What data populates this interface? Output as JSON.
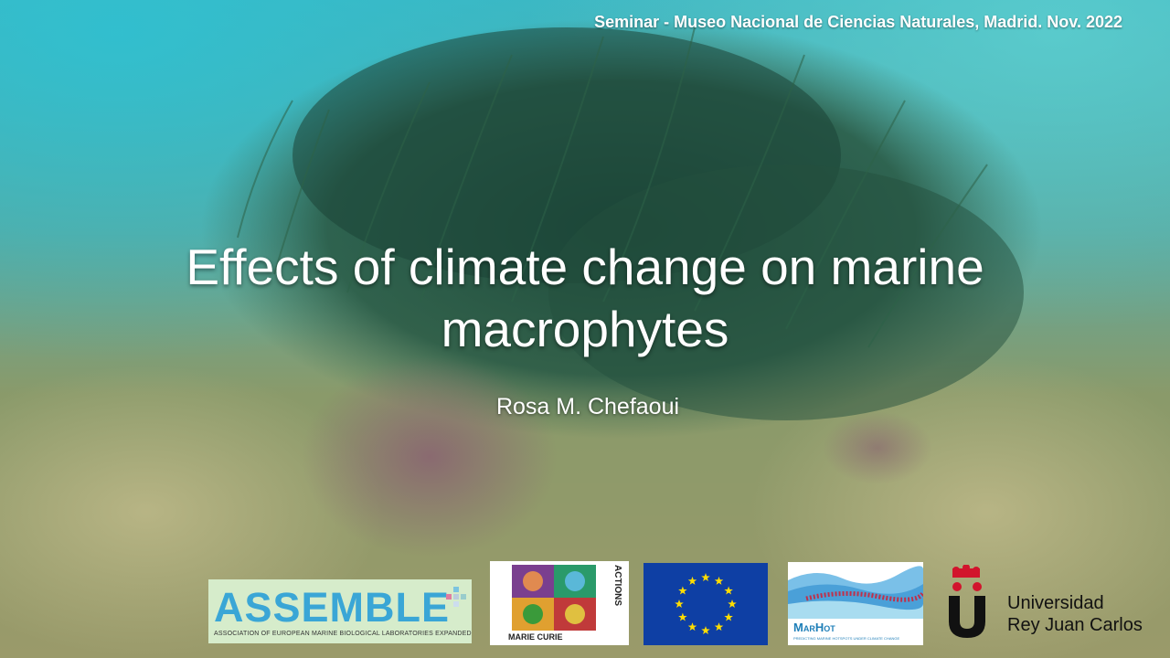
{
  "slide": {
    "seminar_line": "Seminar - Museo Nacional de Ciencias Naturales, Madrid. Nov. 2022",
    "title_line1": "Effects of climate change on marine",
    "title_line2": "macrophytes",
    "author": "Rosa M. Chefaoui"
  },
  "logos": {
    "assemble": {
      "name": "ASSEMBLE",
      "subtitle": "ASSOCIATION OF EUROPEAN MARINE BIOLOGICAL LABORATORIES EXPANDED",
      "color": "#3aa6d6"
    },
    "marie_curie": {
      "name": "MARIE CURIE",
      "side_text": "ACTIONS"
    },
    "eu_flag": {
      "icon": "eu-flag-icon",
      "blue": "#0e3fa4",
      "star_color": "#ffdd00"
    },
    "marhot": {
      "name": "MarHot",
      "subtitle": "PREDICTING MARINE HOTSPOTS UNDER CLIMATE CHANGE"
    },
    "urjc": {
      "line1": "Universidad",
      "line2": "Rey Juan Carlos",
      "accent": "#d2142c"
    }
  }
}
